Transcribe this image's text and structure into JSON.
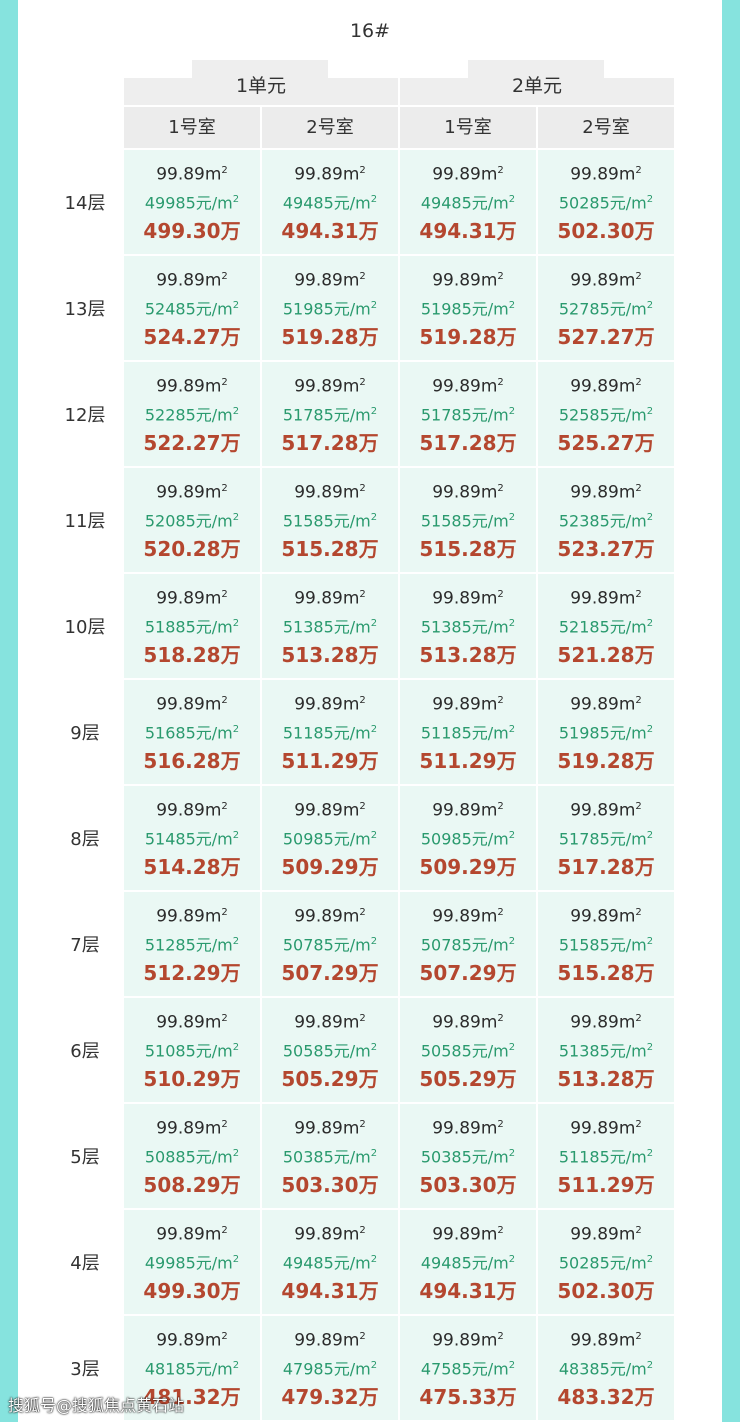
{
  "title": "16#",
  "units": [
    "1单元",
    "2单元"
  ],
  "rooms": [
    "1号室",
    "2号室",
    "1号室",
    "2号室"
  ],
  "area_unit_suffix": "m",
  "unitprice_suffix": "元/m",
  "total_suffix": "万",
  "watermark": "搜狐号@搜狐焦点黄石站",
  "colors": {
    "border": "#86e3de",
    "cell_bg": "#eaf8f4",
    "unit_price": "#2a9a6e",
    "total_price": "#b4472f"
  },
  "rows": [
    {
      "floor": "14层",
      "cells": [
        {
          "area": "99.89",
          "price": "49985",
          "total": "499.30"
        },
        {
          "area": "99.89",
          "price": "49485",
          "total": "494.31"
        },
        {
          "area": "99.89",
          "price": "49485",
          "total": "494.31"
        },
        {
          "area": "99.89",
          "price": "50285",
          "total": "502.30"
        }
      ]
    },
    {
      "floor": "13层",
      "cells": [
        {
          "area": "99.89",
          "price": "52485",
          "total": "524.27"
        },
        {
          "area": "99.89",
          "price": "51985",
          "total": "519.28"
        },
        {
          "area": "99.89",
          "price": "51985",
          "total": "519.28"
        },
        {
          "area": "99.89",
          "price": "52785",
          "total": "527.27"
        }
      ]
    },
    {
      "floor": "12层",
      "cells": [
        {
          "area": "99.89",
          "price": "52285",
          "total": "522.27"
        },
        {
          "area": "99.89",
          "price": "51785",
          "total": "517.28"
        },
        {
          "area": "99.89",
          "price": "51785",
          "total": "517.28"
        },
        {
          "area": "99.89",
          "price": "52585",
          "total": "525.27"
        }
      ]
    },
    {
      "floor": "11层",
      "cells": [
        {
          "area": "99.89",
          "price": "52085",
          "total": "520.28"
        },
        {
          "area": "99.89",
          "price": "51585",
          "total": "515.28"
        },
        {
          "area": "99.89",
          "price": "51585",
          "total": "515.28"
        },
        {
          "area": "99.89",
          "price": "52385",
          "total": "523.27"
        }
      ]
    },
    {
      "floor": "10层",
      "cells": [
        {
          "area": "99.89",
          "price": "51885",
          "total": "518.28"
        },
        {
          "area": "99.89",
          "price": "51385",
          "total": "513.28"
        },
        {
          "area": "99.89",
          "price": "51385",
          "total": "513.28"
        },
        {
          "area": "99.89",
          "price": "52185",
          "total": "521.28"
        }
      ]
    },
    {
      "floor": "9层",
      "cells": [
        {
          "area": "99.89",
          "price": "51685",
          "total": "516.28"
        },
        {
          "area": "99.89",
          "price": "51185",
          "total": "511.29"
        },
        {
          "area": "99.89",
          "price": "51185",
          "total": "511.29"
        },
        {
          "area": "99.89",
          "price": "51985",
          "total": "519.28"
        }
      ]
    },
    {
      "floor": "8层",
      "cells": [
        {
          "area": "99.89",
          "price": "51485",
          "total": "514.28"
        },
        {
          "area": "99.89",
          "price": "50985",
          "total": "509.29"
        },
        {
          "area": "99.89",
          "price": "50985",
          "total": "509.29"
        },
        {
          "area": "99.89",
          "price": "51785",
          "total": "517.28"
        }
      ]
    },
    {
      "floor": "7层",
      "cells": [
        {
          "area": "99.89",
          "price": "51285",
          "total": "512.29"
        },
        {
          "area": "99.89",
          "price": "50785",
          "total": "507.29"
        },
        {
          "area": "99.89",
          "price": "50785",
          "total": "507.29"
        },
        {
          "area": "99.89",
          "price": "51585",
          "total": "515.28"
        }
      ]
    },
    {
      "floor": "6层",
      "cells": [
        {
          "area": "99.89",
          "price": "51085",
          "total": "510.29"
        },
        {
          "area": "99.89",
          "price": "50585",
          "total": "505.29"
        },
        {
          "area": "99.89",
          "price": "50585",
          "total": "505.29"
        },
        {
          "area": "99.89",
          "price": "51385",
          "total": "513.28"
        }
      ]
    },
    {
      "floor": "5层",
      "cells": [
        {
          "area": "99.89",
          "price": "50885",
          "total": "508.29"
        },
        {
          "area": "99.89",
          "price": "50385",
          "total": "503.30"
        },
        {
          "area": "99.89",
          "price": "50385",
          "total": "503.30"
        },
        {
          "area": "99.89",
          "price": "51185",
          "total": "511.29"
        }
      ]
    },
    {
      "floor": "4层",
      "cells": [
        {
          "area": "99.89",
          "price": "49985",
          "total": "499.30"
        },
        {
          "area": "99.89",
          "price": "49485",
          "total": "494.31"
        },
        {
          "area": "99.89",
          "price": "49485",
          "total": "494.31"
        },
        {
          "area": "99.89",
          "price": "50285",
          "total": "502.30"
        }
      ]
    },
    {
      "floor": "3层",
      "cells": [
        {
          "area": "99.89",
          "price": "48185",
          "total": "481.32"
        },
        {
          "area": "99.89",
          "price": "47985",
          "total": "479.32"
        },
        {
          "area": "99.89",
          "price": "47585",
          "total": "475.33"
        },
        {
          "area": "99.89",
          "price": "48385",
          "total": "483.32"
        }
      ]
    }
  ]
}
